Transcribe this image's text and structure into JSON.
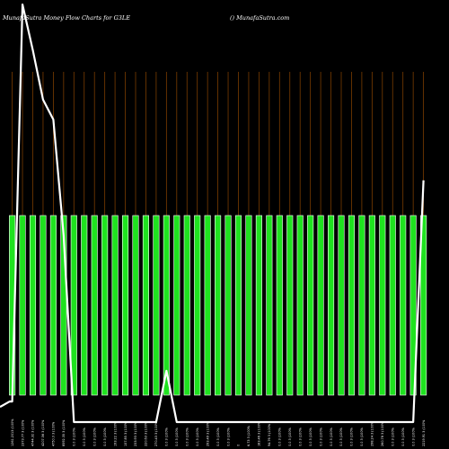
{
  "header": {
    "left_text": "MunafaSutra  Money Flow  Charts for G3LE",
    "right_text": "() MunafaSutra.com"
  },
  "colors": {
    "background": "#000000",
    "bar": "#1fe21f",
    "bar_outline": "#ffffff",
    "gridline": "#7a3c00",
    "line": "#ffffff",
    "text": "#ffffff"
  },
  "chart_data": {
    "type": "bar",
    "title": "MunafaSutra  Money Flow  Charts for G3LE",
    "xlabel": "",
    "ylabel": "",
    "categories": [
      "1261.2013 (100%",
      "2373.77 3 (100%",
      "4744.32 3 (100%",
      "4207.56 3 (100%",
      "4750.0 3 (100%",
      "8592.35 3 (100%",
      "0.0 3 (100%",
      "0.0 3 (100%",
      "0.0 3 (100%",
      "0.0 3 (100%",
      "193.22 3 (100%",
      "157.85 3 (100%",
      "233.93 3 (100%",
      "220.63 3 (100%",
      "270.43 3 (100%",
      "0.0 3 (100%",
      "0.0 3 (100%",
      "0.0 3 (100%",
      "0.0 3 (100%",
      "293.49 3 (100%",
      "0.0 3 (100%",
      "0.0 3 (100%",
      "0",
      "6.73 3 (100%",
      "183.46 3 (100%",
      "94.76 3 (100%",
      "0.0 3 (100%",
      "0.0 3 (100%",
      "0.0 3 (100%",
      "0.0 3 (100%",
      "0.0 3 (100%",
      "0.0 3 (100%",
      "0.0 3 (100%",
      "0.0 3 (100%",
      "0.0 3 (100%",
      "298.24 3 (100%",
      "260.78 3 (100%",
      "0.0 3 (100%",
      "0.0 3 (100%",
      "0.0 3 (100%",
      "2219.91 3 (100%"
    ],
    "series": [
      {
        "values": [
          100,
          100,
          100,
          100,
          100,
          100,
          100,
          100,
          100,
          100,
          100,
          100,
          100,
          100,
          100,
          100,
          100,
          100,
          100,
          100,
          100,
          100,
          100,
          100,
          100,
          100,
          100,
          100,
          100,
          100,
          100,
          100,
          100,
          100,
          100,
          100,
          100,
          100,
          100,
          100,
          100
        ]
      }
    ],
    "line_values": [
      28,
      570,
      508,
      440,
      413,
      255,
      0,
      0,
      0,
      0,
      0,
      0,
      0,
      0,
      0,
      70,
      0,
      0,
      0,
      0,
      0,
      0,
      0,
      0,
      0,
      0,
      0,
      0,
      0,
      0,
      0,
      0,
      0,
      0,
      0,
      0,
      0,
      0,
      0,
      0,
      330
    ],
    "line_ylim": [
      0,
      570
    ],
    "ylim": [
      0,
      100
    ],
    "grid": true,
    "legend": "none"
  }
}
